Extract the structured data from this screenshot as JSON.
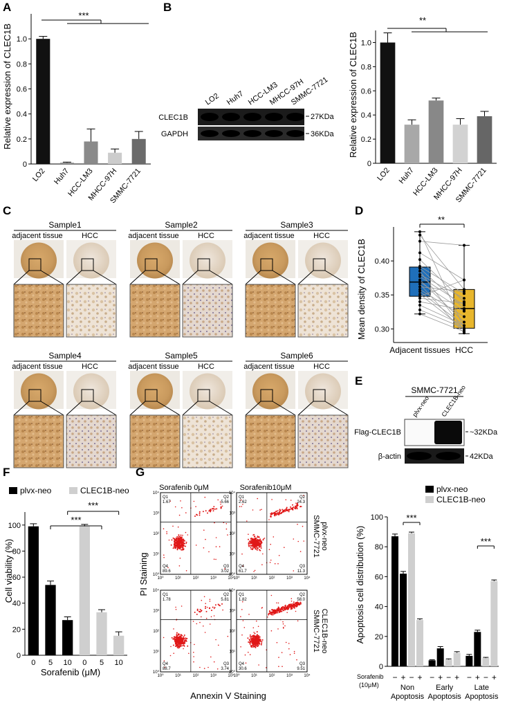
{
  "panels": {
    "A": "A",
    "B": "B",
    "C": "C",
    "D": "D",
    "E": "E",
    "F": "F",
    "G": "G"
  },
  "panelA": {
    "ylabel": "Relative expression of CLEC1B",
    "significance": "***",
    "chart_data": {
      "type": "bar",
      "categories": [
        "LO2",
        "Huh7",
        "HCC-LM3",
        "MHCC-97H",
        "SMMC-7721"
      ],
      "values": [
        1.0,
        0.01,
        0.18,
        0.09,
        0.2
      ],
      "errors": [
        0.02,
        0.005,
        0.1,
        0.03,
        0.06
      ],
      "colors": [
        "#111111",
        "#888888",
        "#8a8a8a",
        "#cccccc",
        "#6b6b6b"
      ],
      "ylim": [
        0,
        1.2
      ],
      "yticks": [
        "0",
        "0.2",
        "0.4",
        "0.6",
        "0.8",
        "1.0"
      ]
    }
  },
  "panelB_blot": {
    "lanes": [
      "LO2",
      "Huh7",
      "HCC-LM3",
      "MHCC-97H",
      "SMMC-7721"
    ],
    "rows": [
      {
        "name": "CLEC1B",
        "size": "27KDa"
      },
      {
        "name": "GAPDH",
        "size": "36KDa"
      }
    ]
  },
  "panelB_chart": {
    "ylabel": "Relative expression of CLEC1B",
    "significance": "**",
    "chart_data": {
      "type": "bar",
      "categories": [
        "LO2",
        "Huh7",
        "HCC-LM3",
        "MHCC-97H",
        "SMMC-7721"
      ],
      "values": [
        1.0,
        0.32,
        0.52,
        0.32,
        0.39
      ],
      "errors": [
        0.08,
        0.04,
        0.02,
        0.05,
        0.04
      ],
      "colors": [
        "#111111",
        "#a8a8a8",
        "#888888",
        "#d2d2d2",
        "#666666"
      ],
      "ylim": [
        0,
        1.1
      ],
      "yticks": [
        "0",
        "0.2",
        "0.4",
        "0.6",
        "0.8",
        "1.0"
      ]
    }
  },
  "panelC": {
    "samples": [
      {
        "title": "Sample1",
        "left": "adjacent tissue",
        "right": "HCC"
      },
      {
        "title": "Sample2",
        "left": "adjacent tissue",
        "right": "HCC"
      },
      {
        "title": "Sample3",
        "left": "adjacent tissue",
        "right": "HCC"
      },
      {
        "title": "Sample4",
        "left": "adjacent tissue",
        "right": "HCC"
      },
      {
        "title": "Sample5",
        "left": "adjacent tissue",
        "right": "HCC"
      },
      {
        "title": "Sample6",
        "left": "adjacent tissue",
        "right": "HCC"
      }
    ]
  },
  "panelD": {
    "ylabel": "Mean density of CLEC1B",
    "significance": "**",
    "chart_data": {
      "type": "box",
      "categories": [
        "Adjacent tissues",
        "HCC"
      ],
      "colors": [
        "#1f6fba",
        "#e8b62c"
      ],
      "boxes": [
        {
          "min": 0.322,
          "q1": 0.348,
          "median": 0.369,
          "q3": 0.391,
          "max": 0.443
        },
        {
          "min": 0.293,
          "q1": 0.301,
          "median": 0.33,
          "q3": 0.358,
          "max": 0.423
        }
      ],
      "pairs": [
        [
          0.443,
          0.301
        ],
        [
          0.438,
          0.358
        ],
        [
          0.429,
          0.423
        ],
        [
          0.412,
          0.372
        ],
        [
          0.402,
          0.34
        ],
        [
          0.392,
          0.352
        ],
        [
          0.389,
          0.33
        ],
        [
          0.385,
          0.298
        ],
        [
          0.38,
          0.345
        ],
        [
          0.377,
          0.335
        ],
        [
          0.372,
          0.31
        ],
        [
          0.369,
          0.326
        ],
        [
          0.366,
          0.294
        ],
        [
          0.362,
          0.355
        ],
        [
          0.358,
          0.318
        ],
        [
          0.355,
          0.305
        ],
        [
          0.351,
          0.3
        ],
        [
          0.348,
          0.372
        ],
        [
          0.345,
          0.338
        ],
        [
          0.34,
          0.328
        ],
        [
          0.335,
          0.305
        ],
        [
          0.328,
          0.301
        ],
        [
          0.322,
          0.296
        ]
      ],
      "ylim": [
        0.28,
        0.45
      ],
      "yticks": [
        "0.30",
        "0.35",
        "0.40"
      ]
    }
  },
  "panelE": {
    "cell_line": "SMMC-7721",
    "lanes": [
      "plvx-neo",
      "CLEC1B-neo"
    ],
    "rows": [
      {
        "name": "Flag-CLEC1B",
        "size": "~32KDa"
      },
      {
        "name": "β-actin",
        "size": "42KDa"
      }
    ]
  },
  "panelF": {
    "ylabel": "Cell viability (%)",
    "xlabel": "Sorafenib (μM)",
    "significance": "***",
    "legend": [
      {
        "label": "plvx-neo",
        "color": "#000000"
      },
      {
        "label": "CLEC1B-neo",
        "color": "#cfcfcf"
      }
    ],
    "chart_data": {
      "type": "bar",
      "categories": [
        "0",
        "5",
        "10",
        "0",
        "5",
        "10"
      ],
      "values": [
        99,
        54,
        27,
        99,
        33,
        15
      ],
      "errors": [
        2,
        3,
        2.5,
        1.5,
        2,
        3
      ],
      "groups": [
        "plvx-neo",
        "plvx-neo",
        "plvx-neo",
        "CLEC1B-neo",
        "CLEC1B-neo",
        "CLEC1B-neo"
      ],
      "ylim": [
        0,
        110
      ],
      "yticks": [
        "0",
        "20",
        "40",
        "60",
        "80",
        "100"
      ]
    }
  },
  "panelG_flow": {
    "col_titles": [
      "Sorafenib 0μM",
      "Sorafenib10μM"
    ],
    "row_labels": [
      [
        "SMMC-7721",
        "plvx-neo"
      ],
      [
        "SMMC-7721",
        "CLEC1B-neo"
      ]
    ],
    "ylabel": "PI Staining",
    "xlabel": "Annexin V  Staining",
    "tick_labels": [
      "10⁰",
      "10¹",
      "10²",
      "10³",
      "10⁴"
    ],
    "plots": [
      {
        "q1n": "Q1",
        "q2n": "Q2",
        "q3n": "Q3",
        "q4n": "Q4",
        "q1": "1.67",
        "q2": "5.66",
        "q3": "3.02",
        "q4": "89.6"
      },
      {
        "q1n": "Q1",
        "q2n": "Q2",
        "q3n": "Q3",
        "q4n": "Q4",
        "q1": "2.62",
        "q2": "24.3",
        "q3": "11.3",
        "q4": "61.7"
      },
      {
        "q1n": "Q1",
        "q2n": "Q2",
        "q3n": "Q3",
        "q4n": "Q4",
        "q1": "1.78",
        "q2": "5.81",
        "q3": "3.74",
        "q4": "88.7"
      },
      {
        "q1n": "Q1",
        "q2n": "Q2",
        "q3n": "Q3",
        "q4n": "Q4",
        "q1": "1.82",
        "q2": "58.0",
        "q3": "9.51",
        "q4": "30.6"
      }
    ]
  },
  "panelG_chart": {
    "ylabel": "Apoptosis cell distribution (%)",
    "legend": [
      {
        "label": "plvx-neo",
        "color": "#000000"
      },
      {
        "label": "CLEC1B-neo",
        "color": "#cfcfcf"
      }
    ],
    "sorafenib_label": [
      "Sorafenib",
      "(10μM)"
    ],
    "signs": [
      "−",
      "+",
      "−",
      "+"
    ],
    "significance": [
      "***",
      "***"
    ],
    "chart_data": {
      "type": "bar",
      "groups": [
        {
          "name": [
            "Non",
            "Apoptosis"
          ],
          "values": [
            87,
            62,
            89,
            31
          ],
          "errors": [
            1.5,
            1.5,
            0.8,
            0.8
          ]
        },
        {
          "name": [
            "Early",
            "Apoptosis"
          ],
          "values": [
            4,
            12,
            4.5,
            9
          ],
          "errors": [
            0.4,
            1.2,
            0.5,
            0.8
          ]
        },
        {
          "name": [
            "Late",
            "Apoptosis"
          ],
          "values": [
            7,
            23,
            5.5,
            57
          ],
          "errors": [
            1,
            1.2,
            0.5,
            0.8
          ]
        }
      ],
      "bar_series": [
        "plvx-neo",
        "plvx-neo",
        "CLEC1B-neo",
        "CLEC1B-neo"
      ],
      "ylim": [
        0,
        100
      ],
      "yticks": [
        "0",
        "20",
        "40",
        "60",
        "80",
        "100"
      ]
    }
  }
}
